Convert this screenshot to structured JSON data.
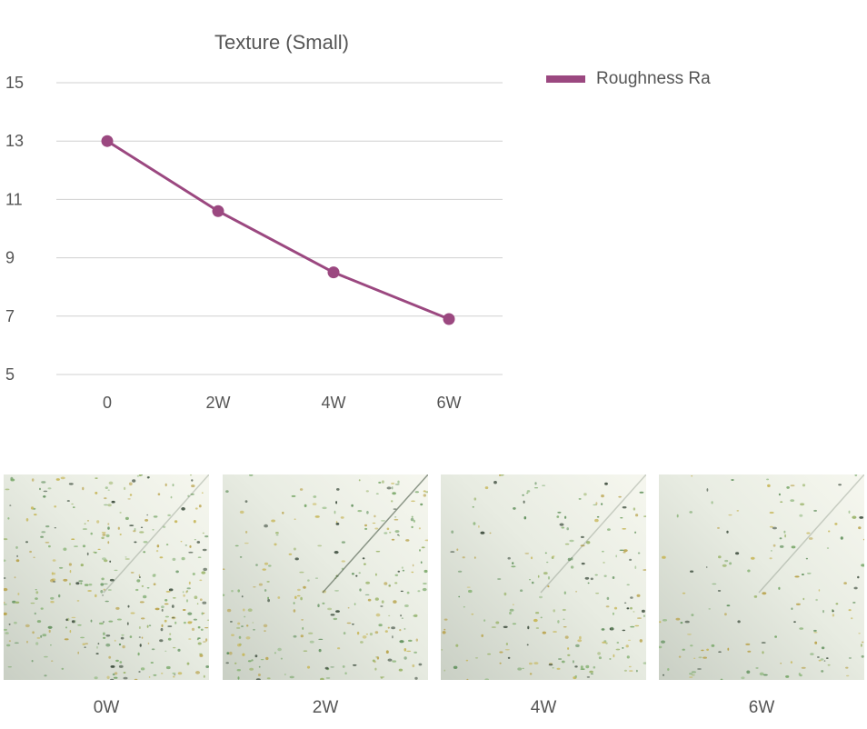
{
  "chart_data": {
    "type": "line",
    "title": "Texture (Small)",
    "categories": [
      "0",
      "2W",
      "4W",
      "6W"
    ],
    "series": [
      {
        "name": "Roughness Ra",
        "values": [
          13.0,
          10.6,
          8.5,
          6.9
        ]
      }
    ],
    "y_ticks": [
      "15",
      "13",
      "11",
      "9",
      "7",
      "5"
    ],
    "ylim": [
      5,
      15
    ],
    "grid": true,
    "legend_position": "top-right",
    "colors": {
      "series": "#9b4880",
      "grid": "#d0d0d0"
    }
  },
  "photos": [
    {
      "label": "0W"
    },
    {
      "label": "2W"
    },
    {
      "label": "4W"
    },
    {
      "label": "6W"
    }
  ]
}
